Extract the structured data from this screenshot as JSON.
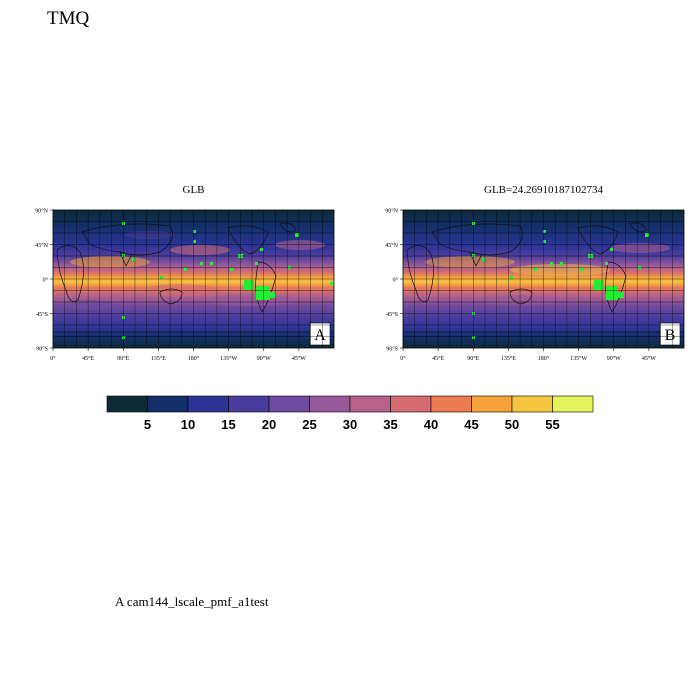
{
  "title": "TMQ",
  "footer": "A  cam144_lscale_pmf_a1test",
  "panels": [
    {
      "title": "GLB",
      "tag": "A"
    },
    {
      "title": "GLB=24.26910187102734",
      "tag": "B"
    }
  ],
  "map": {
    "lat_ticks": [
      "90°N",
      "45°N",
      "0°",
      "45°S",
      "90°S"
    ],
    "lon_ticks": [
      "0°",
      "45°E",
      "90°E",
      "135°E",
      "180°",
      "135°W",
      "90°W",
      "45°W"
    ]
  },
  "colorbar": {
    "labels": [
      "5",
      "10",
      "15",
      "20",
      "25",
      "30",
      "35",
      "40",
      "45",
      "50",
      "55"
    ],
    "colors": [
      "#0d2a37",
      "#132f6a",
      "#2b3596",
      "#4a3c9e",
      "#6e4b9f",
      "#965a9a",
      "#b8628c",
      "#d46c72",
      "#ec7d52",
      "#f6a23a",
      "#f5c53f",
      "#e4f25c"
    ]
  },
  "colors": {
    "marker": "#22ee33"
  }
}
